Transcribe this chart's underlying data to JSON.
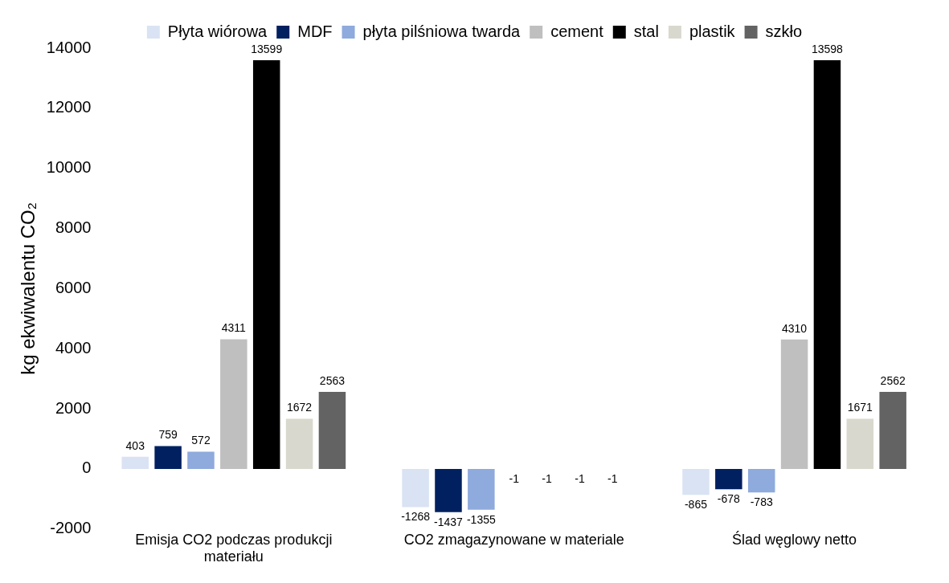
{
  "chart_data": {
    "type": "bar",
    "ylabel": "kg ekwiwalentu CO₂",
    "categories": [
      "Emisja CO2 podczas produkcji materiału",
      "CO2 zmagazynowane w materiale",
      "Ślad węglowy netto"
    ],
    "series": [
      {
        "name": "Płyta wiórowa",
        "color": "#dae3f3",
        "values": [
          403,
          -1268,
          -865
        ]
      },
      {
        "name": "MDF",
        "color": "#002060",
        "values": [
          759,
          -1437,
          -678
        ]
      },
      {
        "name": "płyta pilśniowa twarda",
        "color": "#8faadc",
        "values": [
          572,
          -1355,
          -783
        ]
      },
      {
        "name": "cement",
        "color": "#bfbfbf",
        "values": [
          4311,
          -1,
          4310
        ]
      },
      {
        "name": "stal",
        "color": "#000000",
        "values": [
          13599,
          -1,
          13598
        ]
      },
      {
        "name": "plastik",
        "color": "#d9d8ce",
        "values": [
          1672,
          -1,
          1671
        ]
      },
      {
        "name": "szkło",
        "color": "#636363",
        "values": [
          2563,
          -1,
          2562
        ]
      }
    ],
    "ylim": [
      -2000,
      14000
    ],
    "yticks": [
      -2000,
      0,
      2000,
      4000,
      6000,
      8000,
      10000,
      12000,
      14000
    ],
    "grid": false,
    "legend": "top",
    "data_labels": true
  }
}
